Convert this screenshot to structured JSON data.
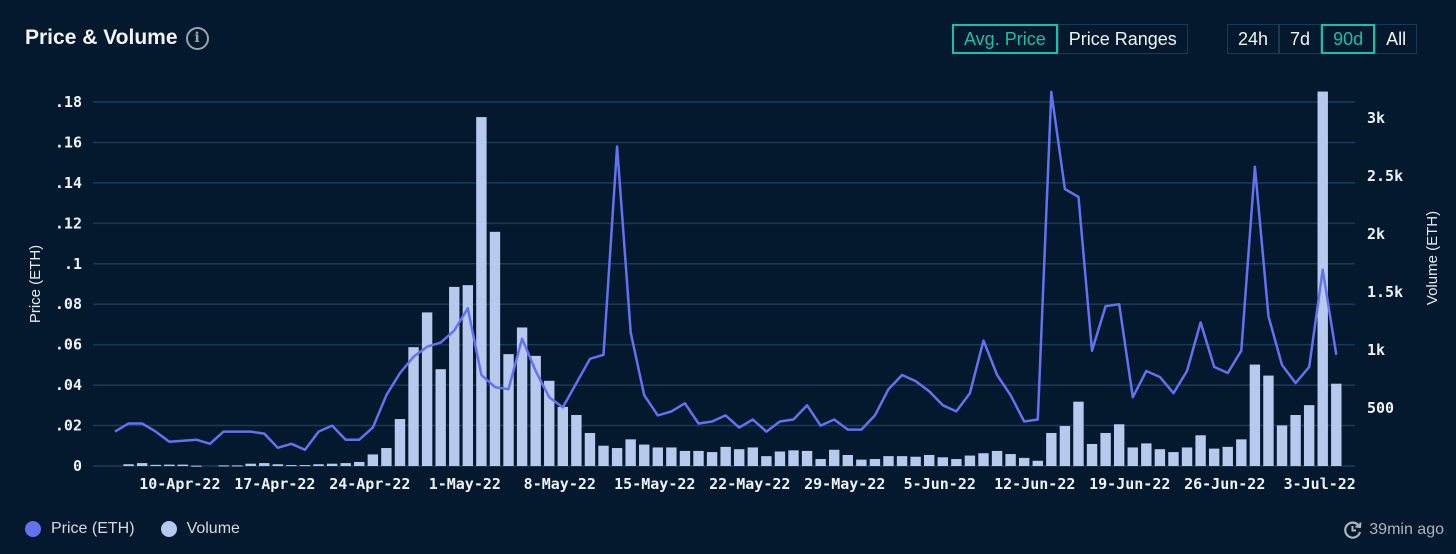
{
  "header": {
    "title": "Price & Volume",
    "info_icon": "info-icon"
  },
  "price_mode": {
    "options": [
      "Avg. Price",
      "Price Ranges"
    ],
    "selected": "Avg. Price"
  },
  "range": {
    "options": [
      "24h",
      "7d",
      "90d",
      "All"
    ],
    "selected": "90d"
  },
  "footer": {
    "updated": "39min ago",
    "updated_icon": "clock-refresh-icon"
  },
  "colors": {
    "price_line": "#6272f0",
    "volume_bar": "#b8c9ee",
    "accent": "#19c2a0",
    "background": "#04192d"
  },
  "chart_data": {
    "type": "bar+line",
    "title": "Price & Volume",
    "start_date": "5-Apr-22",
    "x_tick_labels": [
      "10-Apr-22",
      "17-Apr-22",
      "24-Apr-22",
      "1-May-22",
      "8-May-22",
      "15-May-22",
      "22-May-22",
      "29-May-22",
      "5-Jun-22",
      "12-Jun-22",
      "19-Jun-22",
      "26-Jun-22",
      "3-Jul-22"
    ],
    "x_tick_day_index": [
      5,
      12,
      19,
      26,
      33,
      40,
      47,
      54,
      61,
      68,
      75,
      82,
      89
    ],
    "ylabel_left": "Price (ETH)",
    "ylabel_right": "Volume (ETH)",
    "y_left_ticks": [
      "0",
      ".02",
      ".04",
      ".06",
      ".08",
      ".1",
      ".12",
      ".14",
      ".16",
      ".18"
    ],
    "y_left_tick_values": [
      0,
      0.02,
      0.04,
      0.06,
      0.08,
      0.1,
      0.12,
      0.14,
      0.16,
      0.18
    ],
    "y_left_range": [
      0,
      0.18
    ],
    "y_right_ticks": [
      "500",
      "1k",
      "1.5k",
      "2k",
      "2.5k",
      "3k"
    ],
    "y_right_tick_values": [
      500,
      1000,
      1500,
      2000,
      2500,
      3000
    ],
    "y_right_range": [
      0,
      3140
    ],
    "grid": true,
    "legend": {
      "position": "bottom-left",
      "entries": [
        "Price (ETH)",
        "Volume"
      ]
    },
    "series": [
      {
        "name": "Price (ETH)",
        "type": "line",
        "values": [
          0.017,
          0.021,
          0.021,
          0.017,
          0.012,
          0.0125,
          0.013,
          0.011,
          0.017,
          0.017,
          0.017,
          0.016,
          0.009,
          0.011,
          0.008,
          0.017,
          0.02,
          0.013,
          0.013,
          0.019,
          0.035,
          0.046,
          0.054,
          0.059,
          0.061,
          0.067,
          0.078,
          0.045,
          0.039,
          0.038,
          0.063,
          0.047,
          0.034,
          0.029,
          0.041,
          0.053,
          0.055,
          0.158,
          0.066,
          0.035,
          0.025,
          0.027,
          0.031,
          0.021,
          0.022,
          0.025,
          0.019,
          0.023,
          0.017,
          0.022,
          0.023,
          0.03,
          0.02,
          0.023,
          0.018,
          0.018,
          0.025,
          0.038,
          0.045,
          0.042,
          0.037,
          0.03,
          0.027,
          0.036,
          0.062,
          0.045,
          0.035,
          0.022,
          0.023,
          0.185,
          0.137,
          0.133,
          0.057,
          0.079,
          0.08,
          0.034,
          0.047,
          0.044,
          0.036,
          0.047,
          0.071,
          0.049,
          0.046,
          0.057,
          0.148,
          0.074,
          0.05,
          0.041,
          0.049,
          0.097,
          0.055
        ]
      },
      {
        "name": "Volume",
        "type": "bar",
        "values": [
          0,
          15,
          25,
          10,
          12,
          12,
          3,
          0,
          5,
          5,
          20,
          25,
          15,
          8,
          8,
          15,
          20,
          25,
          35,
          100,
          155,
          405,
          1025,
          1325,
          835,
          1545,
          1560,
          3010,
          2020,
          965,
          1195,
          950,
          735,
          510,
          440,
          285,
          175,
          155,
          230,
          185,
          160,
          160,
          130,
          130,
          120,
          165,
          145,
          160,
          85,
          125,
          135,
          130,
          60,
          140,
          95,
          55,
          60,
          85,
          85,
          80,
          95,
          75,
          60,
          90,
          110,
          130,
          103,
          70,
          45,
          285,
          345,
          555,
          190,
          285,
          360,
          160,
          195,
          145,
          120,
          160,
          265,
          150,
          165,
          230,
          875,
          780,
          350,
          440,
          525,
          3230,
          710
        ]
      }
    ]
  }
}
